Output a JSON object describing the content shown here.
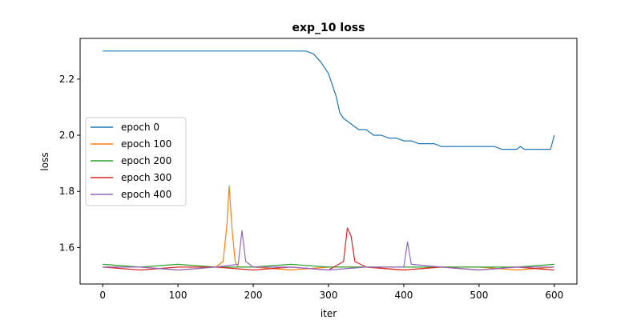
{
  "chart_data": {
    "type": "line",
    "title": "exp_10 loss",
    "xlabel": "iter",
    "ylabel": "loss",
    "xlim": [
      -30,
      630
    ],
    "ylim": [
      1.47,
      2.345
    ],
    "xticks": [
      0,
      100,
      200,
      300,
      400,
      500,
      600
    ],
    "yticks": [
      1.6,
      1.8,
      2.0,
      2.2
    ],
    "ytick_labels": [
      "1.6",
      "1.8",
      "2.0",
      "2.2"
    ],
    "legend_position": "center-left",
    "grid": false,
    "series": [
      {
        "name": "epoch 0",
        "color": "#1f77b4",
        "x": [
          0,
          30,
          60,
          90,
          120,
          150,
          180,
          210,
          240,
          270,
          280,
          290,
          300,
          305,
          310,
          315,
          320,
          325,
          330,
          340,
          350,
          360,
          370,
          380,
          390,
          400,
          410,
          420,
          430,
          440,
          450,
          460,
          470,
          480,
          490,
          500,
          510,
          520,
          530,
          540,
          550,
          555,
          560,
          570,
          580,
          590,
          595,
          600
        ],
        "y": [
          2.3,
          2.3,
          2.3,
          2.3,
          2.3,
          2.3,
          2.3,
          2.3,
          2.3,
          2.3,
          2.29,
          2.26,
          2.22,
          2.18,
          2.14,
          2.08,
          2.06,
          2.05,
          2.04,
          2.02,
          2.02,
          2.0,
          2.0,
          1.99,
          1.99,
          1.98,
          1.98,
          1.97,
          1.97,
          1.97,
          1.96,
          1.96,
          1.96,
          1.96,
          1.96,
          1.96,
          1.96,
          1.96,
          1.95,
          1.95,
          1.95,
          1.96,
          1.95,
          1.95,
          1.95,
          1.95,
          1.95,
          2.0
        ]
      },
      {
        "name": "epoch 100",
        "color": "#ff7f0e",
        "x": [
          0,
          50,
          100,
          150,
          160,
          165,
          168,
          172,
          176,
          180,
          200,
          250,
          300,
          350,
          400,
          450,
          500,
          550,
          600
        ],
        "y": [
          1.53,
          1.53,
          1.52,
          1.53,
          1.55,
          1.68,
          1.82,
          1.66,
          1.55,
          1.53,
          1.53,
          1.52,
          1.53,
          1.53,
          1.52,
          1.53,
          1.53,
          1.52,
          1.53
        ]
      },
      {
        "name": "epoch 200",
        "color": "#2ca02c",
        "x": [
          0,
          50,
          100,
          150,
          200,
          250,
          300,
          350,
          400,
          450,
          500,
          550,
          600
        ],
        "y": [
          1.54,
          1.53,
          1.54,
          1.53,
          1.53,
          1.54,
          1.53,
          1.53,
          1.53,
          1.53,
          1.53,
          1.53,
          1.54
        ]
      },
      {
        "name": "epoch 300",
        "color": "#d62728",
        "x": [
          0,
          50,
          100,
          150,
          200,
          250,
          300,
          320,
          325,
          330,
          335,
          350,
          400,
          450,
          500,
          550,
          600
        ],
        "y": [
          1.53,
          1.52,
          1.53,
          1.53,
          1.52,
          1.53,
          1.52,
          1.55,
          1.67,
          1.64,
          1.55,
          1.53,
          1.52,
          1.53,
          1.52,
          1.53,
          1.52
        ]
      },
      {
        "name": "epoch 400",
        "color": "#9467bd",
        "x": [
          0,
          50,
          100,
          150,
          180,
          185,
          190,
          200,
          250,
          300,
          350,
          400,
          405,
          410,
          450,
          500,
          550,
          600
        ],
        "y": [
          1.53,
          1.53,
          1.52,
          1.53,
          1.54,
          1.66,
          1.55,
          1.53,
          1.53,
          1.52,
          1.53,
          1.53,
          1.62,
          1.54,
          1.53,
          1.52,
          1.53,
          1.53
        ]
      }
    ]
  }
}
